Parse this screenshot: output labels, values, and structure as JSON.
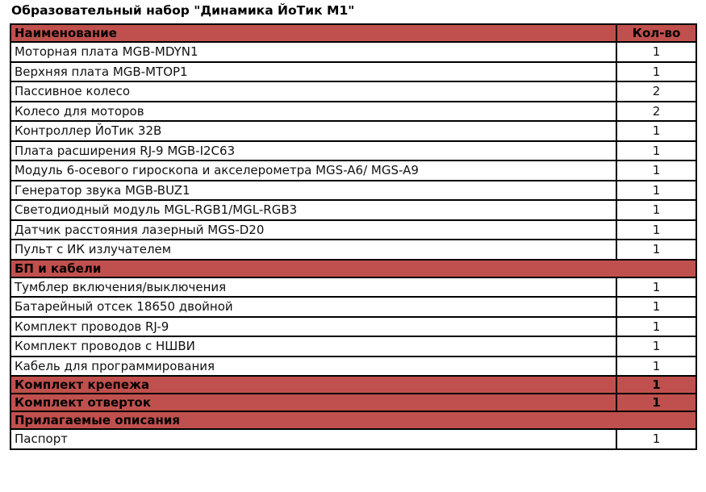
{
  "title": "Образовательный набор \"Динамика ЙоТик М1\"",
  "accent_color": "#c0504d",
  "header": {
    "name": "Наименование",
    "qty": "Кол-во"
  },
  "items": [
    {
      "name": "Моторная плата MGB-MDYN1",
      "qty": "1"
    },
    {
      "name": "Верхняя плата MGB-MTOP1",
      "qty": "1"
    },
    {
      "name": "Пассивное колесо",
      "qty": "2"
    },
    {
      "name": "Колесо для моторов",
      "qty": "2"
    },
    {
      "name": "Контроллер ЙоТик 32В",
      "qty": "1"
    },
    {
      "name": "Плата расширения RJ-9 MGB-I2C63",
      "qty": "1"
    },
    {
      "name": "Модуль 6-осевого гироскопа и акселерометра MGS-A6/ MGS-A9",
      "qty": "1"
    },
    {
      "name": "Генератор звука MGB-BUZ1",
      "qty": "1"
    },
    {
      "name": "Светодиодный модуль MGL-RGB1/MGL-RGB3",
      "qty": "1"
    },
    {
      "name": "Датчик расстояния лазерный MGS-D20",
      "qty": "1"
    },
    {
      "name": "Пульт с ИК излучателем",
      "qty": "1"
    }
  ],
  "section_power": "БП и кабели",
  "power_items": [
    {
      "name": "Тумблер включения/выключения",
      "qty": "1"
    },
    {
      "name": "Батарейный отсек 18650 двойной",
      "qty": "1"
    },
    {
      "name": "Комплект проводов RJ-9",
      "qty": "1"
    },
    {
      "name": "Комплект проводов с НШВИ",
      "qty": "1"
    },
    {
      "name": "Кабель для программирования",
      "qty": "1"
    }
  ],
  "fasteners": {
    "name": "Комплект крепежа",
    "qty": "1"
  },
  "screwdrivers": {
    "name": "Комплект отверток",
    "qty": "1"
  },
  "section_docs": "Прилагаемые описания",
  "doc_items": [
    {
      "name": "Паспорт",
      "qty": "1"
    }
  ]
}
